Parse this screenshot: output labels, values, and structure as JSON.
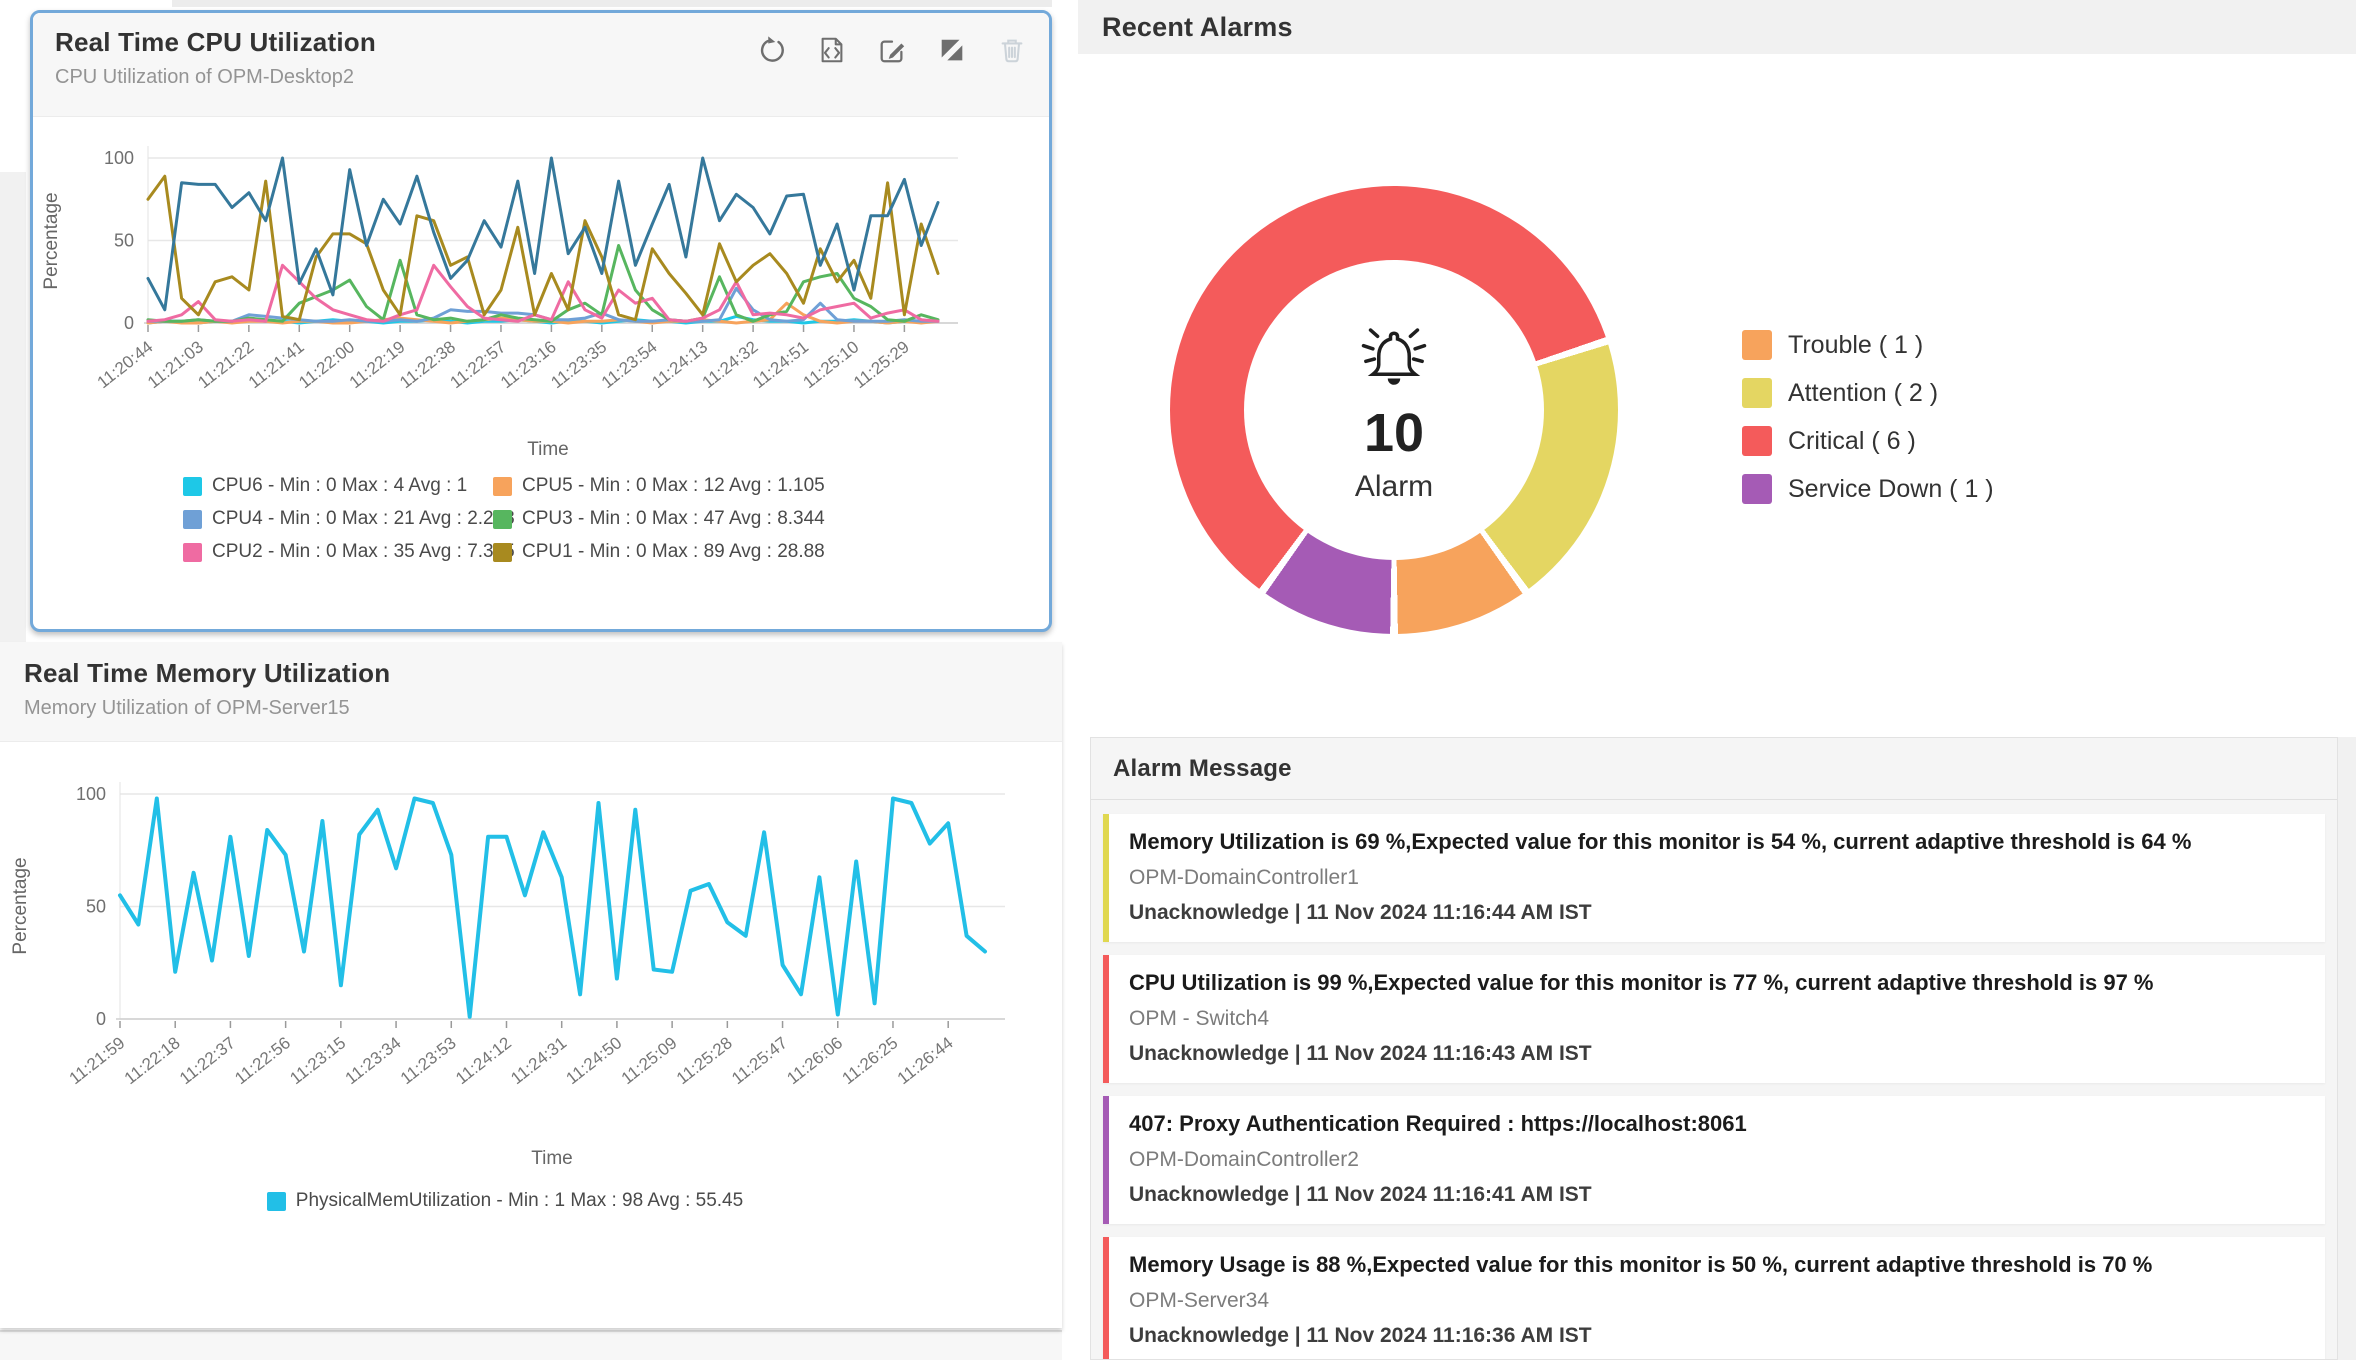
{
  "cpu_panel": {
    "title": "Real Time CPU Utilization",
    "subtitle": "CPU Utilization of OPM-Desktop2",
    "toolbar_icons": [
      "refresh-icon",
      "embed-code-icon",
      "edit-icon",
      "contrast-icon",
      "trash-icon"
    ]
  },
  "memory_panel": {
    "title": "Real Time Memory Utilization",
    "subtitle": "Memory Utilization of OPM-Server15"
  },
  "recent_alarms": {
    "title": "Recent Alarms"
  },
  "alarm_messages": {
    "title": "Alarm Message",
    "items": [
      {
        "message": "Memory Utilization is 69 %,Expected value for this monitor is 54 %, current adaptive threshold is 64 %",
        "device": "OPM-DomainController1",
        "status": "Unacknowledge",
        "time": "11 Nov 2024 11:16:44 AM IST",
        "color": "#e0d850"
      },
      {
        "message": "CPU Utilization is 99 %,Expected value for this monitor is 77 %, current adaptive threshold is 97 %",
        "device": "OPM - Switch4",
        "status": "Unacknowledge",
        "time": "11 Nov 2024 11:16:43 AM IST",
        "color": "#f45b5b"
      },
      {
        "message": "407: Proxy Authentication Required : https://localhost:8061",
        "device": "OPM-DomainController2",
        "status": "Unacknowledge",
        "time": "11 Nov 2024 11:16:41 AM IST",
        "color": "#a55bb5"
      },
      {
        "message": "Memory Usage is 88 %,Expected value for this monitor is 50 %, current adaptive threshold is 70 %",
        "device": "OPM-Server34",
        "status": "Unacknowledge",
        "time": "11 Nov 2024 11:16:36 AM IST",
        "color": "#f45b5b"
      }
    ]
  },
  "chart_data": [
    {
      "type": "line",
      "title": "Real Time CPU Utilization",
      "xlabel": "Time",
      "ylabel": "Percentage",
      "ylim": [
        0,
        100
      ],
      "yticks": [
        0,
        50,
        100
      ],
      "grid": "horizontal",
      "legend_position": "bottom",
      "points_per_label": 3,
      "x": [
        "11:20:44",
        "11:21:03",
        "11:21:22",
        "11:21:41",
        "11:22:00",
        "11:22:19",
        "11:22:38",
        "11:22:57",
        "11:23:16",
        "11:23:35",
        "11:23:54",
        "11:24:13",
        "11:24:32",
        "11:24:51",
        "11:25:10",
        "11:25:29"
      ],
      "series": [
        {
          "name": "CPU6",
          "color": "#1ec8e7",
          "legend": "CPU6 - Min : 0 Max : 4 Avg : 1",
          "values": [
            0,
            1,
            1,
            0,
            1,
            1,
            2,
            1,
            1,
            0,
            1,
            2,
            1,
            1,
            0,
            1,
            1,
            2,
            1,
            0,
            1,
            1,
            2,
            1,
            0,
            1,
            1,
            0,
            1,
            2,
            1,
            1,
            0,
            1,
            1,
            4,
            2,
            1,
            1,
            0,
            1,
            1,
            2,
            1,
            0,
            1,
            1,
            1
          ]
        },
        {
          "name": "CPU5",
          "color": "#f7a35c",
          "legend": "CPU5 - Min : 0 Max : 12 Avg : 1.105",
          "values": [
            0,
            1,
            0,
            0,
            1,
            0,
            1,
            1,
            0,
            1,
            1,
            0,
            0,
            1,
            2,
            3,
            2,
            1,
            0,
            1,
            2,
            3,
            2,
            1,
            1,
            0,
            1,
            1,
            2,
            1,
            0,
            1,
            1,
            2,
            1,
            0,
            1,
            2,
            12,
            5,
            1,
            0,
            1,
            1,
            0,
            1,
            0,
            1
          ]
        },
        {
          "name": "CPU4",
          "color": "#6fa0d6",
          "legend": "CPU4 - Min : 0 Max : 21 Avg : 2.208",
          "values": [
            1,
            1,
            1,
            2,
            1,
            1,
            5,
            4,
            3,
            2,
            1,
            1,
            2,
            1,
            1,
            2,
            1,
            3,
            8,
            7,
            7,
            6,
            6,
            5,
            2,
            2,
            3,
            6,
            2,
            1,
            1,
            2,
            1,
            1,
            2,
            21,
            8,
            2,
            1,
            2,
            12,
            2,
            1,
            1,
            1,
            2,
            1,
            1
          ]
        },
        {
          "name": "CPU3",
          "color": "#57b65f",
          "legend": "CPU3 - Min : 0 Max : 47 Avg : 8.344",
          "values": [
            2,
            1,
            1,
            2,
            1,
            1,
            3,
            2,
            1,
            12,
            16,
            20,
            26,
            10,
            2,
            38,
            5,
            2,
            3,
            1,
            2,
            5,
            3,
            2,
            1,
            8,
            12,
            5,
            47,
            20,
            8,
            2,
            1,
            3,
            28,
            5,
            1,
            5,
            7,
            25,
            28,
            30,
            15,
            10,
            2,
            1,
            5,
            2
          ]
        },
        {
          "name": "CPU2",
          "color": "#ef6ba2",
          "legend": "CPU2 - Min : 0 Max : 35 Avg : 7.375",
          "values": [
            1,
            2,
            5,
            13,
            2,
            1,
            2,
            1,
            35,
            25,
            15,
            8,
            5,
            2,
            1,
            5,
            8,
            35,
            22,
            10,
            3,
            2,
            1,
            5,
            2,
            25,
            8,
            3,
            20,
            12,
            15,
            2,
            1,
            3,
            8,
            25,
            5,
            6,
            5,
            3,
            8,
            10,
            12,
            3,
            6,
            8,
            2,
            1
          ]
        },
        {
          "name": "CPU1",
          "color": "#a88a1f",
          "legend": "CPU1 - Min : 0 Max : 89 Avg : 28.88",
          "values": [
            75,
            89,
            15,
            5,
            25,
            28,
            20,
            86,
            4,
            2,
            40,
            54,
            54,
            48,
            20,
            5,
            65,
            62,
            35,
            40,
            5,
            20,
            58,
            5,
            30,
            8,
            62,
            40,
            5,
            2,
            45,
            30,
            18,
            5,
            48,
            25,
            35,
            42,
            30,
            12,
            45,
            25,
            38,
            15,
            85,
            5,
            60,
            30
          ]
        },
        {
          "name": "unlabeled",
          "color": "#35789b",
          "legend": null,
          "legend_hidden": true,
          "values": [
            27,
            8,
            85,
            84,
            84,
            70,
            79,
            62,
            100,
            24,
            45,
            17,
            93,
            47,
            75,
            60,
            89,
            55,
            27,
            38,
            62,
            46,
            86,
            30,
            100,
            42,
            58,
            30,
            86,
            35,
            60,
            84,
            40,
            100,
            62,
            78,
            70,
            54,
            77,
            78,
            35,
            60,
            20,
            65,
            65,
            87,
            47,
            73
          ]
        }
      ]
    },
    {
      "type": "line",
      "title": "Real Time Memory Utilization",
      "xlabel": "Time",
      "ylabel": "Percentage",
      "ylim": [
        0,
        100
      ],
      "yticks": [
        0,
        50,
        100
      ],
      "grid": "horizontal",
      "legend_position": "bottom",
      "points_per_label": 3,
      "x": [
        "11:21:59",
        "11:22:18",
        "11:22:37",
        "11:22:56",
        "11:23:15",
        "11:23:34",
        "11:23:53",
        "11:24:12",
        "11:24:31",
        "11:24:50",
        "11:25:09",
        "11:25:28",
        "11:25:47",
        "11:26:06",
        "11:26:25",
        "11:26:44"
      ],
      "series": [
        {
          "name": "PhysicalMemUtilization",
          "color": "#22bfe7",
          "width": 4,
          "legend": "PhysicalMemUtilization - Min : 1 Max : 98 Avg : 55.45",
          "values": [
            55,
            42,
            98,
            21,
            65,
            26,
            81,
            28,
            84,
            73,
            30,
            88,
            15,
            82,
            93,
            67,
            98,
            96,
            73,
            1,
            81,
            81,
            55,
            83,
            63,
            11,
            96,
            18,
            93,
            22,
            21,
            57,
            60,
            43,
            37,
            83,
            24,
            11,
            63,
            2,
            70,
            7,
            98,
            96,
            78,
            87,
            37,
            30
          ]
        }
      ]
    },
    {
      "type": "pie",
      "title": "Recent Alarms",
      "total": 10,
      "center_label": "Alarm",
      "legend_position": "right",
      "slices": [
        {
          "label": "Trouble",
          "value": 1,
          "color": "#f7a35c"
        },
        {
          "label": "Attention",
          "value": 2,
          "color": "#e4d662"
        },
        {
          "label": "Critical",
          "value": 6,
          "color": "#f45b5b"
        },
        {
          "label": "Service Down",
          "value": 1,
          "color": "#a55bb5"
        }
      ]
    }
  ]
}
